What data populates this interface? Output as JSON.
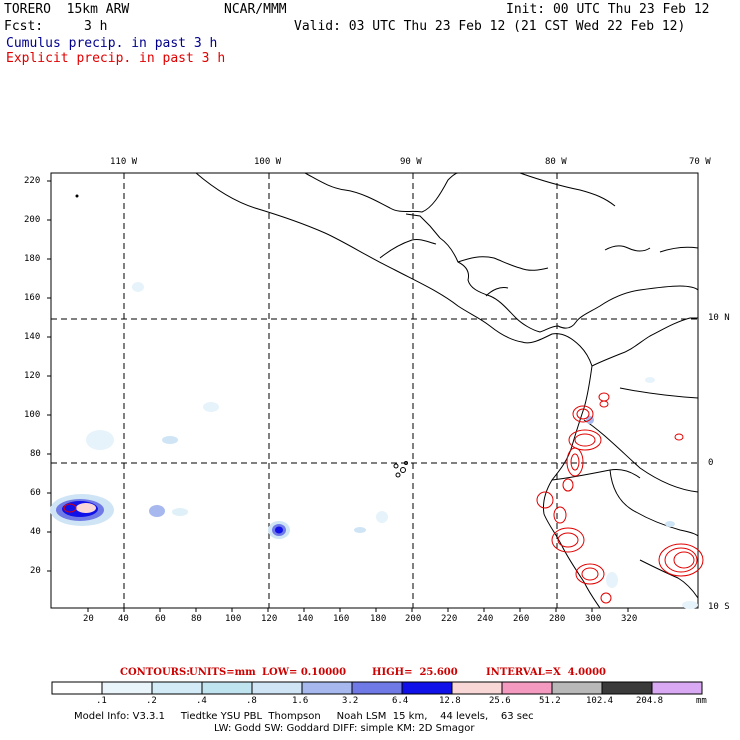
{
  "header": {
    "model": "TORERO  15km ARW",
    "center": "NCAR/MMM",
    "init": "Init: 00 UTC Thu 23 Feb 12",
    "fcst_label": "Fcst:",
    "fcst_value": "3 h",
    "valid": "Valid: 03 UTC Thu 23 Feb 12 (21 CST Wed 22 Feb 12)",
    "line_cumulus": "Cumulus precip. in past 3 h",
    "line_explicit": "Explicit precip. in past 3 h"
  },
  "map": {
    "lon_labels": [
      "110 W",
      "100 W",
      "90 W",
      "80 W",
      "70 W"
    ],
    "lat_labels": [
      "10 N",
      "0",
      "10 S"
    ],
    "y_ticks": [
      "220",
      "200",
      "180",
      "160",
      "140",
      "120",
      "100",
      "80",
      "60",
      "40",
      "20"
    ],
    "x_ticks": [
      "20",
      "40",
      "60",
      "80",
      "100",
      "120",
      "140",
      "160",
      "180",
      "200",
      "220",
      "240",
      "260",
      "280",
      "300",
      "320"
    ]
  },
  "contours_line": {
    "label": "CONTOURS:",
    "units": "UNITS=mm",
    "low": "LOW= 0.10000",
    "high": "HIGH=  25.600",
    "interval": "INTERVAL=X  4.0000"
  },
  "legend": {
    "bins": [
      "#ffffff",
      "#eaf4fb",
      "#d2ebf7",
      "#bfe3ef",
      "#cfe5f6",
      "#a6b8ee",
      "#6f7ae6",
      "#1010e8",
      "#fad7d7",
      "#f49ac0",
      "#b8b8b8",
      "#3a3a3a",
      "#d9a9f3"
    ],
    "labels": [
      ".1",
      ".2",
      ".4",
      ".8",
      "1.6",
      "3.2",
      "6.4",
      "12.8",
      "25.6",
      "51.2",
      "102.4",
      "204.8"
    ],
    "unit": "mm"
  },
  "model_info": {
    "line1": "Model Info: V3.3.1     Tiedtke YSU PBL  Thompson     Noah LSM  15 km,    44 levels,    63 sec",
    "line2": "LW: Godd SW: Goddard DIFF: simple KM: 2D Smagor"
  },
  "colors": {
    "explicit_contour": "#e00000",
    "cumulus_text": "#00008b",
    "grid": "#000000"
  }
}
